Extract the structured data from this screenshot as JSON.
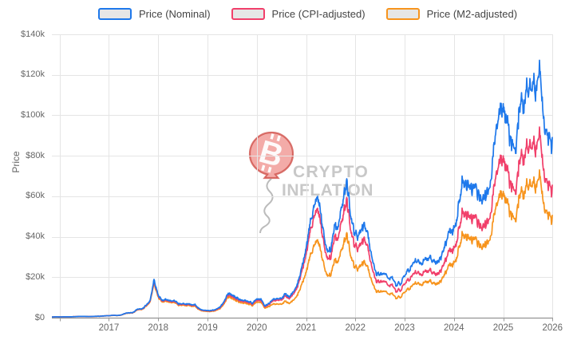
{
  "legend": {
    "items": [
      {
        "label": "Price (Nominal)"
      },
      {
        "label": "Price (CPI-adjusted)"
      },
      {
        "label": "Price (M2-adjusted)"
      }
    ]
  },
  "watermark": {
    "line1": "CRYPTO",
    "line2": "INFLATION",
    "balloon_glyph": "B",
    "bitcoin_symbol": "₿",
    "balloon_color": "#e05555",
    "text_color": "#9a9a9a"
  },
  "chart_data": {
    "type": "line",
    "title": "",
    "xlabel": "",
    "ylabel": "Price",
    "legend_position": "top",
    "grid": true,
    "ylim": [
      0,
      140
    ],
    "values_unit": "USD thousands",
    "x_unit": "decimal year, monthly points",
    "x_start": 2015.8333,
    "x_step": 0.0833333,
    "x_gridline_years": [
      2016,
      2017,
      2018,
      2019,
      2020,
      2021,
      2022,
      2023,
      2024,
      2025,
      2026
    ],
    "x_ticks": [
      {
        "value": 2017,
        "label": "2017"
      },
      {
        "value": 2018,
        "label": "2018"
      },
      {
        "value": 2019,
        "label": "2019"
      },
      {
        "value": 2020,
        "label": "2020"
      },
      {
        "value": 2021,
        "label": "2021"
      },
      {
        "value": 2022,
        "label": "2022"
      },
      {
        "value": 2023,
        "label": "2023"
      },
      {
        "value": 2024,
        "label": "2024"
      },
      {
        "value": 2025,
        "label": "2025"
      },
      {
        "value": 2026,
        "label": "2026"
      }
    ],
    "y_ticks": [
      {
        "value": 0,
        "label": "$0"
      },
      {
        "value": 20,
        "label": "$20k"
      },
      {
        "value": 40,
        "label": "$40k"
      },
      {
        "value": 60,
        "label": "$60k"
      },
      {
        "value": 80,
        "label": "$80k"
      },
      {
        "value": 100,
        "label": "$100k"
      },
      {
        "value": 120,
        "label": "$120k"
      },
      {
        "value": 140,
        "label": "$140k"
      }
    ],
    "series": [
      {
        "name": "Price (Nominal)",
        "color": "#1e78eb",
        "values": [
          0.33,
          0.43,
          0.38,
          0.44,
          0.42,
          0.45,
          0.53,
          0.67,
          0.62,
          0.58,
          0.61,
          0.7,
          0.74,
          0.96,
          0.97,
          1.15,
          1.08,
          1.35,
          2.2,
          2.5,
          2.7,
          4.4,
          4.3,
          6,
          8.2,
          18.8,
          11,
          8.7,
          9,
          8.3,
          8.4,
          6.8,
          7,
          6.9,
          6.5,
          6.4,
          4.5,
          3.6,
          3.5,
          3.7,
          4,
          5.2,
          7.9,
          12.2,
          10.6,
          10.3,
          8.6,
          8.5,
          7.8,
          7.2,
          8.9,
          9.4,
          5.8,
          7.2,
          9.2,
          9.4,
          9.8,
          11.6,
          10.7,
          12.9,
          17.5,
          25,
          34,
          47,
          56,
          60,
          44,
          34,
          33.5,
          45,
          45,
          59,
          66,
          49,
          40,
          41.5,
          46,
          42.5,
          30,
          21.5,
          22,
          21.8,
          19.4,
          19.8,
          16.3,
          16.8,
          21.3,
          23.6,
          26.5,
          29,
          27.3,
          28.5,
          30,
          27.6,
          26.6,
          31,
          36.5,
          43,
          43.5,
          52,
          68,
          65,
          64.5,
          64,
          62,
          59,
          61.5,
          67,
          90,
          100,
          103,
          95,
          86,
          84,
          103,
          106,
          116.5,
          114,
          112.5,
          122,
          92,
          88,
          86.5
        ]
      },
      {
        "name": "Price (CPI-adjusted)",
        "color": "#f13f6a",
        "values": [
          0.33,
          0.43,
          0.38,
          0.44,
          0.42,
          0.45,
          0.53,
          0.66,
          0.61,
          0.57,
          0.6,
          0.69,
          0.73,
          0.94,
          0.95,
          1.13,
          1.06,
          1.32,
          2.15,
          2.43,
          2.62,
          4.27,
          4.17,
          5.8,
          7.91,
          18.12,
          10.58,
          8.36,
          8.63,
          7.95,
          8.03,
          6.49,
          6.67,
          6.57,
          6.18,
          6.07,
          4.26,
          3.4,
          3.3,
          3.49,
          3.77,
          4.89,
          7.42,
          11.44,
          9.92,
          9.63,
          8.03,
          7.92,
          7.26,
          6.69,
          8.26,
          8.71,
          5.37,
          6.66,
          8.5,
          8.68,
          9.04,
          10.68,
          9.84,
          11.86,
          16.07,
          22.93,
          31.1,
          42.8,
          50.7,
          54.1,
          39.4,
          30.3,
          29.6,
          39.6,
          39.4,
          51.3,
          57.1,
          42.1,
          34.2,
          35.3,
          38.9,
          35.8,
          25.1,
          17.9,
          18.2,
          18,
          15.9,
          16.2,
          13.2,
          13.6,
          17.1,
          18.9,
          21.2,
          23.1,
          21.7,
          22.6,
          23.7,
          21.8,
          20.9,
          24.3,
          28.5,
          33.5,
          33.8,
          40.4,
          52.6,
          50.2,
          49.7,
          49.2,
          47.6,
          45.1,
          46.9,
          51.1,
          68.4,
          75.8,
          77.9,
          71.6,
          64.8,
          63.1,
          77.1,
          79.2,
          86.9,
          84.8,
          83.5,
          90.3,
          68,
          64.9,
          63.6
        ]
      },
      {
        "name": "Price (M2-adjusted)",
        "color": "#f7941d",
        "values": [
          0.33,
          0.43,
          0.38,
          0.44,
          0.42,
          0.44,
          0.52,
          0.66,
          0.61,
          0.56,
          0.59,
          0.67,
          0.71,
          0.92,
          0.92,
          1.09,
          1.02,
          1.27,
          2.06,
          2.34,
          2.52,
          4.08,
          3.98,
          5.53,
          7.54,
          17.2,
          10,
          7.9,
          8.15,
          7.49,
          7.55,
          6.09,
          6.24,
          6.13,
          5.75,
          5.64,
          3.96,
          3.15,
          3.05,
          3.22,
          3.46,
          4.48,
          6.79,
          10.44,
          9.04,
          8.74,
          7.28,
          7.17,
          6.55,
          6.02,
          7.41,
          7.81,
          4.76,
          5.62,
          6.85,
          6.75,
          6.86,
          8.03,
          7.34,
          8.77,
          11.76,
          16.6,
          22.3,
          30.6,
          36.2,
          38.5,
          28.1,
          21.5,
          21.1,
          28.1,
          27.9,
          36.3,
          40.4,
          29.7,
          24.1,
          25,
          27.6,
          25.5,
          18,
          12.9,
          13.2,
          13.1,
          11.7,
          11.9,
          9.8,
          10.2,
          12.9,
          14.3,
          16.1,
          17.6,
          16.6,
          17.4,
          18.3,
          16.8,
          16.3,
          18.9,
          22.3,
          26.3,
          26.7,
          31.8,
          41.4,
          39.5,
          39,
          38.6,
          37.3,
          35.4,
          36.8,
          39.9,
          53.5,
          59.2,
          60.8,
          55.9,
          50.4,
          49.1,
          60,
          61.6,
          67.5,
          65.8,
          64.7,
          70,
          52.6,
          50.2,
          49.1
        ]
      }
    ]
  }
}
